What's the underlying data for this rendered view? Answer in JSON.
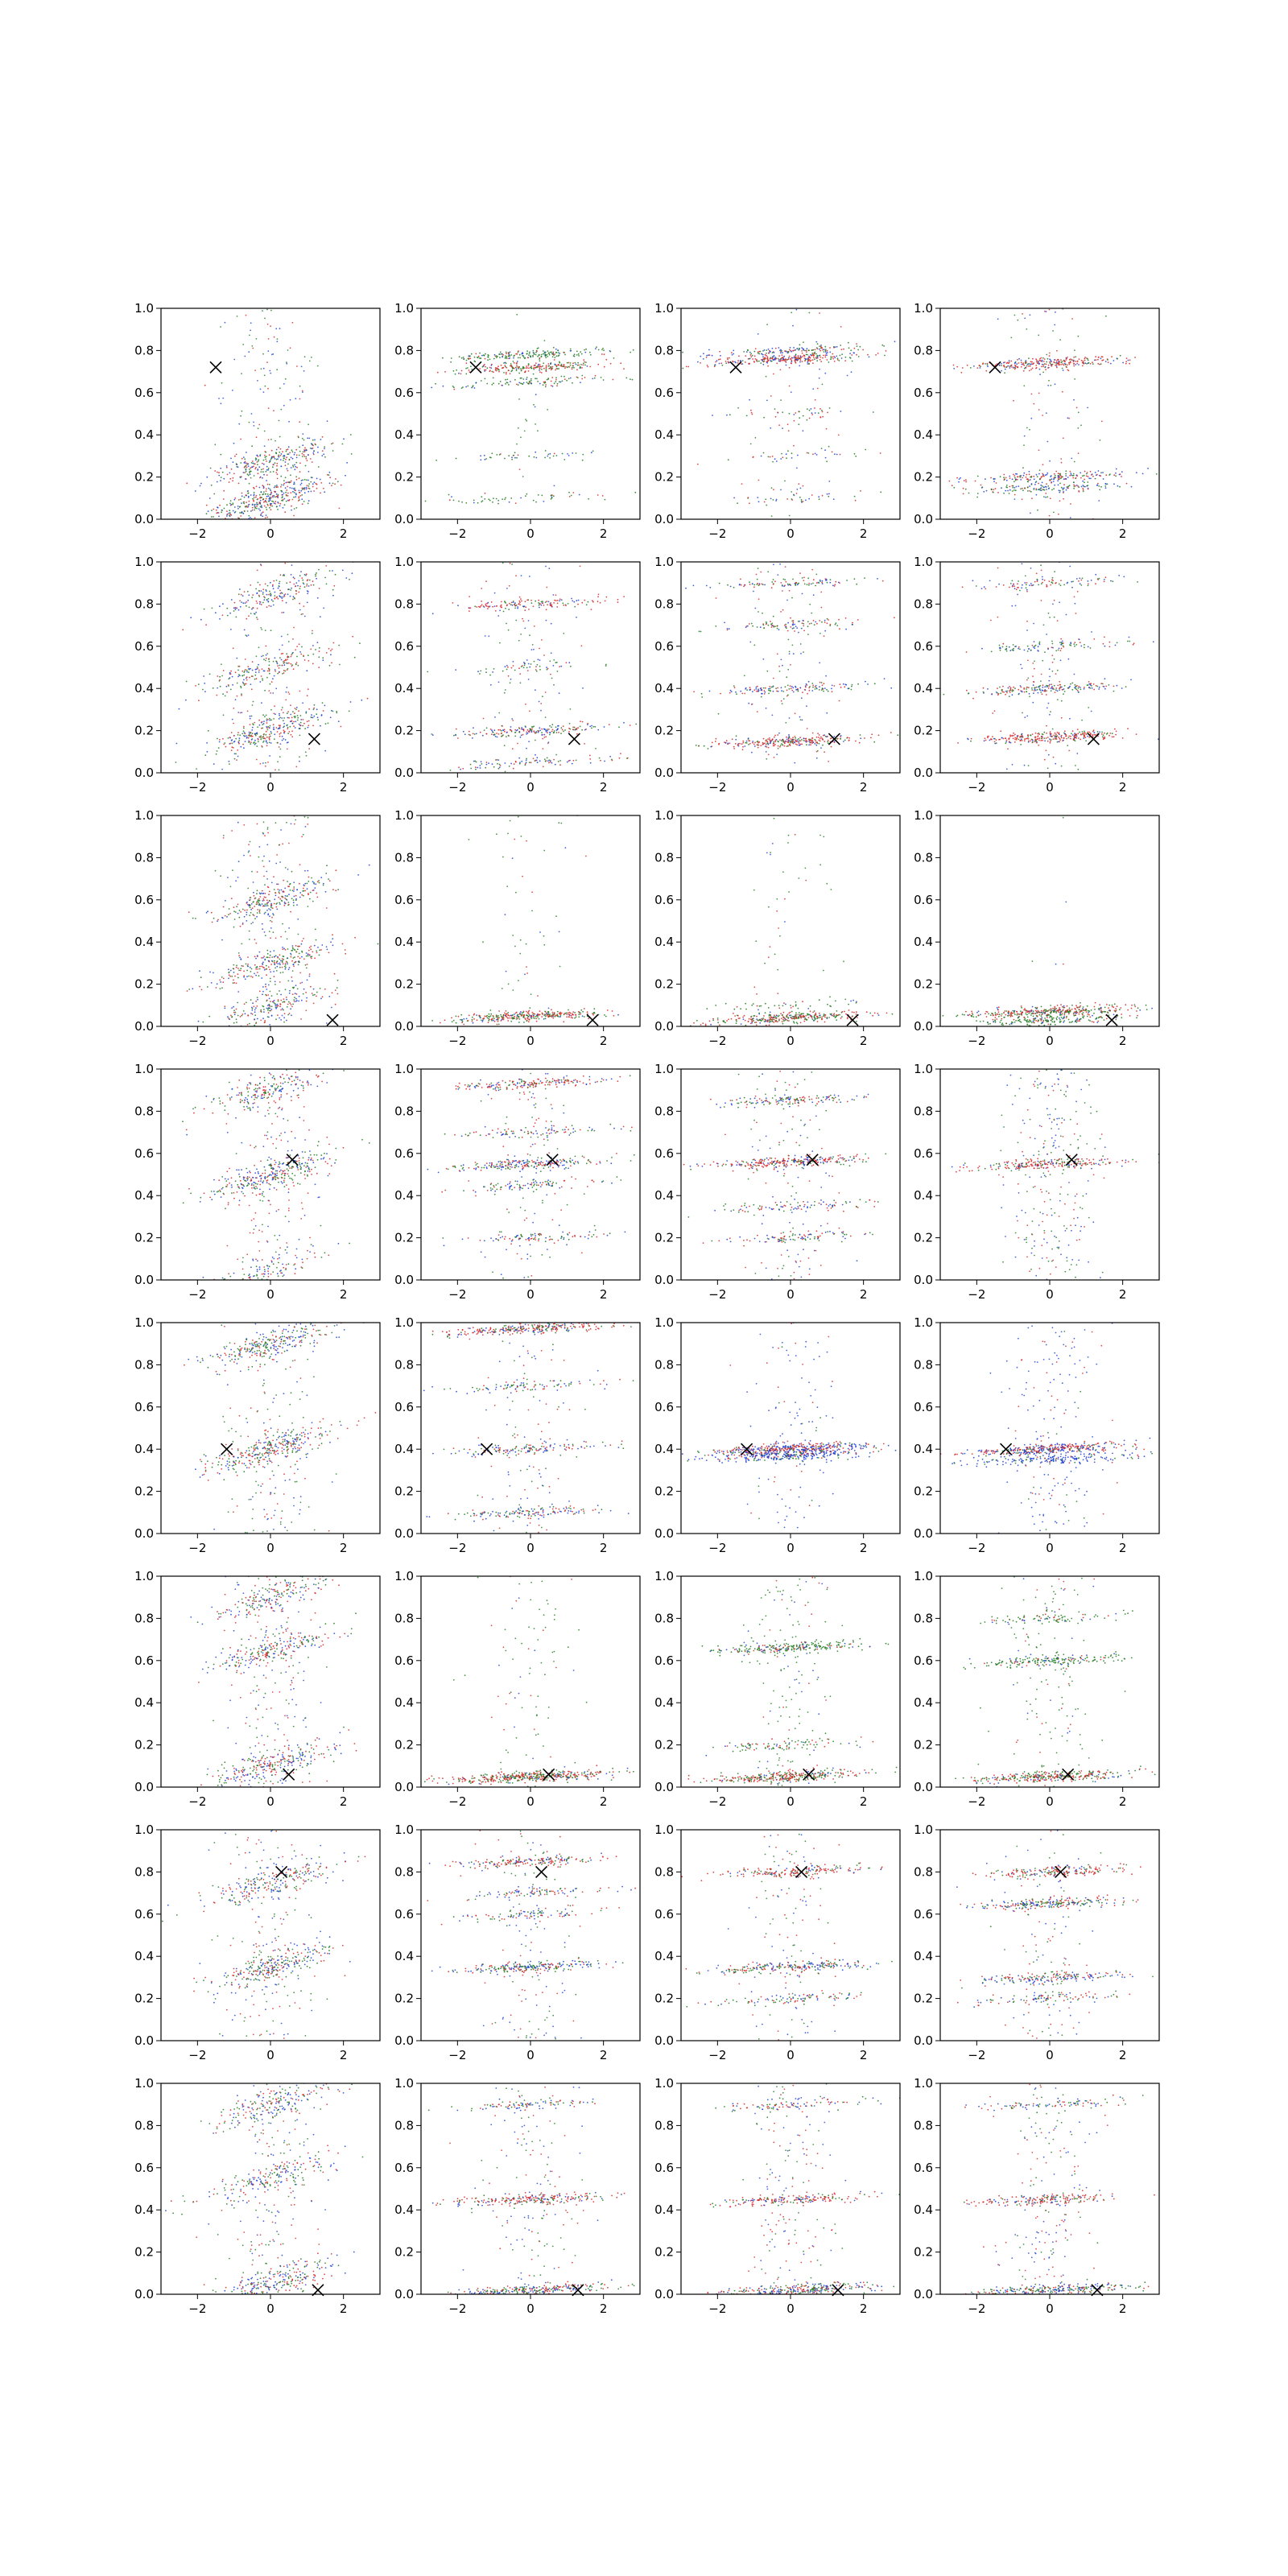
{
  "figure": {
    "description_grid": "8 rows x 4 columns of scatter subplots",
    "x_ticks": [
      -2,
      0,
      2
    ],
    "y_ticks": [
      0.0,
      0.2,
      0.4,
      0.6,
      0.8,
      1.0
    ],
    "x_tick_labels": [
      "−2",
      "0",
      "2"
    ],
    "y_tick_labels": [
      "0.0",
      "0.2",
      "0.4",
      "0.6",
      "0.8",
      "1.0"
    ],
    "colors": {
      "red": "#d62728",
      "green": "#1f7a1f",
      "blue": "#1f3fd6",
      "marker": "#000000"
    }
  },
  "chart_data": {
    "type": "scatter",
    "xlim": [
      -3.0,
      3.0
    ],
    "ylim": [
      0.0,
      1.0
    ],
    "rows": 8,
    "cols": 4,
    "series_names": [
      "red",
      "green",
      "blue"
    ],
    "rows_data": [
      {
        "marker": {
          "x": -1.5,
          "y": 0.72
        },
        "panels": [
          {
            "mode": "wavy",
            "bands": [
              [
                0.1,
                0.4
              ],
              [
                0.27,
                0.3
              ]
            ],
            "noise": 0.35
          },
          {
            "mode": "bands",
            "bands": [
              [
                0.72,
                0.25
              ],
              [
                0.78,
                0.22
              ],
              [
                0.65,
                0.12
              ],
              [
                0.3,
                0.05
              ],
              [
                0.1,
                0.06
              ]
            ],
            "noise": 0.05,
            "dominant": "green"
          },
          {
            "mode": "bands",
            "bands": [
              [
                0.76,
                0.3
              ],
              [
                0.8,
                0.15
              ],
              [
                0.5,
                0.04
              ],
              [
                0.3,
                0.04
              ],
              [
                0.1,
                0.04
              ]
            ],
            "noise": 0.18
          },
          {
            "mode": "bands",
            "bands": [
              [
                0.74,
                0.3
              ],
              [
                0.2,
                0.2
              ],
              [
                0.15,
                0.15
              ]
            ],
            "noise": 0.25
          }
        ]
      },
      {
        "marker": {
          "x": 1.2,
          "y": 0.16
        },
        "panels": [
          {
            "mode": "wavy",
            "bands": [
              [
                0.2,
                0.3
              ],
              [
                0.5,
                0.2
              ],
              [
                0.85,
                0.2
              ]
            ],
            "noise": 0.45
          },
          {
            "mode": "bands",
            "bands": [
              [
                0.8,
                0.15
              ],
              [
                0.2,
                0.2
              ],
              [
                0.05,
                0.1
              ],
              [
                0.5,
                0.05
              ]
            ],
            "noise": 0.3
          },
          {
            "mode": "bands",
            "bands": [
              [
                0.15,
                0.3
              ],
              [
                0.4,
                0.15
              ],
              [
                0.7,
                0.1
              ],
              [
                0.9,
                0.1
              ]
            ],
            "noise": 0.3
          },
          {
            "mode": "bands",
            "bands": [
              [
                0.17,
                0.3
              ],
              [
                0.4,
                0.2
              ],
              [
                0.6,
                0.1
              ],
              [
                0.9,
                0.1
              ]
            ],
            "noise": 0.3
          }
        ]
      },
      {
        "marker": {
          "x": 1.7,
          "y": 0.03
        },
        "panels": [
          {
            "mode": "wavy",
            "bands": [
              [
                0.3,
                0.25
              ],
              [
                0.6,
                0.25
              ],
              [
                0.1,
                0.2
              ]
            ],
            "noise": 0.5
          },
          {
            "mode": "bands",
            "bands": [
              [
                0.05,
                0.35
              ]
            ],
            "noise": 0.12,
            "dominant": "green"
          },
          {
            "mode": "bands",
            "bands": [
              [
                0.04,
                0.35
              ],
              [
                0.1,
                0.05
              ]
            ],
            "noise": 0.1,
            "dominant": "green"
          },
          {
            "mode": "bands",
            "bands": [
              [
                0.07,
                0.4
              ],
              [
                0.03,
                0.2
              ]
            ],
            "noise": 0.02,
            "dominant": "green"
          }
        ]
      },
      {
        "marker": {
          "x": 0.6,
          "y": 0.57
        },
        "panels": [
          {
            "mode": "wavy",
            "bands": [
              [
                0.5,
                0.35
              ],
              [
                0.9,
                0.2
              ],
              [
                0.05,
                0.1
              ]
            ],
            "noise": 0.45
          },
          {
            "mode": "bands",
            "bands": [
              [
                0.93,
                0.2
              ],
              [
                0.55,
                0.25
              ],
              [
                0.45,
                0.1
              ],
              [
                0.7,
                0.1
              ],
              [
                0.2,
                0.1
              ]
            ],
            "noise": 0.3
          },
          {
            "mode": "bands",
            "bands": [
              [
                0.56,
                0.3
              ],
              [
                0.85,
                0.15
              ],
              [
                0.2,
                0.1
              ],
              [
                0.35,
                0.1
              ]
            ],
            "noise": 0.35
          },
          {
            "mode": "bands",
            "bands": [
              [
                0.55,
                0.25
              ]
            ],
            "noise": 0.6
          }
        ]
      },
      {
        "marker": {
          "x": -1.2,
          "y": 0.4
        },
        "panels": [
          {
            "mode": "wavy",
            "bands": [
              [
                0.4,
                0.35
              ],
              [
                0.9,
                0.3
              ]
            ],
            "noise": 0.4
          },
          {
            "mode": "bands",
            "bands": [
              [
                0.97,
                0.3
              ],
              [
                0.4,
                0.15
              ],
              [
                0.1,
                0.15
              ],
              [
                0.7,
                0.1
              ]
            ],
            "noise": 0.3
          },
          {
            "mode": "bands",
            "bands": [
              [
                0.4,
                0.45
              ],
              [
                0.37,
                0.3
              ]
            ],
            "noise": 0.25,
            "dominant": "blue"
          },
          {
            "mode": "bands",
            "bands": [
              [
                0.4,
                0.4
              ],
              [
                0.35,
                0.2
              ]
            ],
            "noise": 0.4,
            "dominant": "blue"
          }
        ]
      },
      {
        "marker": {
          "x": 0.5,
          "y": 0.06
        },
        "panels": [
          {
            "mode": "wavy",
            "bands": [
              [
                0.1,
                0.3
              ],
              [
                0.65,
                0.25
              ],
              [
                0.9,
                0.2
              ]
            ],
            "noise": 0.4
          },
          {
            "mode": "bands",
            "bands": [
              [
                0.05,
                0.45
              ]
            ],
            "noise": 0.2,
            "dominant": "green"
          },
          {
            "mode": "bands",
            "bands": [
              [
                0.05,
                0.35
              ],
              [
                0.66,
                0.25
              ],
              [
                0.2,
                0.1
              ]
            ],
            "noise": 0.35,
            "dominant": "green"
          },
          {
            "mode": "bands",
            "bands": [
              [
                0.05,
                0.35
              ],
              [
                0.6,
                0.2
              ],
              [
                0.8,
                0.1
              ]
            ],
            "noise": 0.35,
            "dominant": "green"
          }
        ]
      },
      {
        "marker": {
          "x": 0.3,
          "y": 0.8
        },
        "panels": [
          {
            "mode": "wavy",
            "bands": [
              [
                0.35,
                0.3
              ],
              [
                0.75,
                0.25
              ]
            ],
            "noise": 0.4
          },
          {
            "mode": "bands",
            "bands": [
              [
                0.85,
                0.2
              ],
              [
                0.35,
                0.25
              ],
              [
                0.6,
                0.1
              ],
              [
                0.7,
                0.1
              ]
            ],
            "noise": 0.3
          },
          {
            "mode": "bands",
            "bands": [
              [
                0.8,
                0.2
              ],
              [
                0.35,
                0.25
              ],
              [
                0.2,
                0.1
              ]
            ],
            "noise": 0.3
          },
          {
            "mode": "bands",
            "bands": [
              [
                0.8,
                0.2
              ],
              [
                0.65,
                0.25
              ],
              [
                0.3,
                0.2
              ],
              [
                0.2,
                0.1
              ]
            ],
            "noise": 0.3
          }
        ]
      },
      {
        "marker": {
          "x": 1.3,
          "y": 0.02
        },
        "panels": [
          {
            "mode": "wavy",
            "bands": [
              [
                0.05,
                0.3
              ],
              [
                0.55,
                0.2
              ],
              [
                0.9,
                0.2
              ]
            ],
            "noise": 0.45
          },
          {
            "mode": "bands",
            "bands": [
              [
                0.45,
                0.25
              ],
              [
                0.9,
                0.1
              ],
              [
                0.02,
                0.3
              ]
            ],
            "noise": 0.35
          },
          {
            "mode": "bands",
            "bands": [
              [
                0.45,
                0.2
              ],
              [
                0.9,
                0.1
              ],
              [
                0.02,
                0.3
              ]
            ],
            "noise": 0.4
          },
          {
            "mode": "bands",
            "bands": [
              [
                0.45,
                0.2
              ],
              [
                0.9,
                0.1
              ],
              [
                0.02,
                0.3
              ]
            ],
            "noise": 0.4
          }
        ]
      }
    ]
  }
}
